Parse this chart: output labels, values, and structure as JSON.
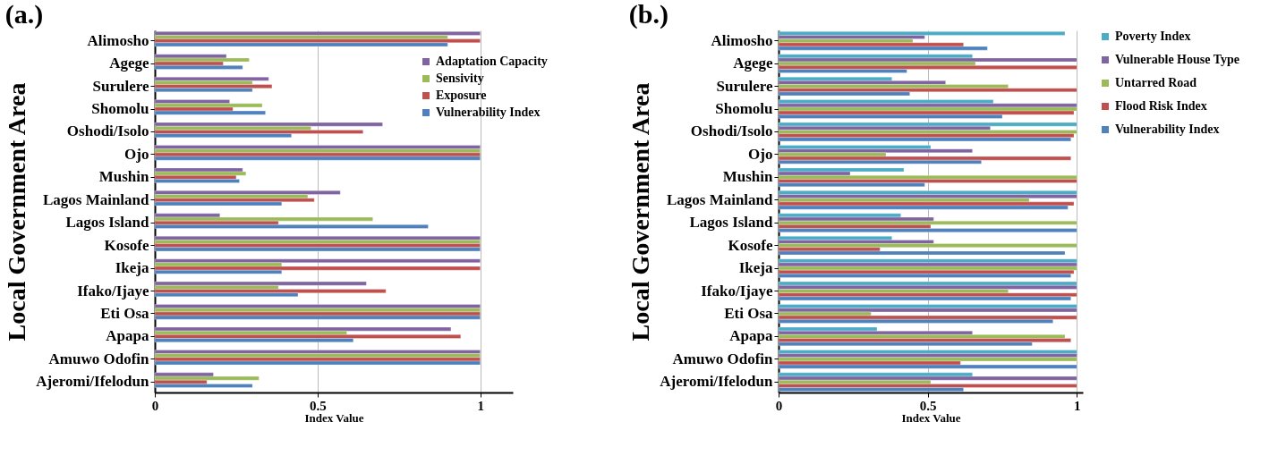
{
  "chart_data": [
    {
      "type": "bar",
      "orientation": "horizontal",
      "title": "(a.)",
      "xlabel": "Index Value",
      "ylabel": "Local Government Area",
      "categories": [
        "Alimosho",
        "Agege",
        "Surulere",
        "Shomolu",
        "Oshodi/Isolo",
        "Ojo",
        "Mushin",
        "Lagos Mainland",
        "Lagos Island",
        "Kosofe",
        "Ikeja",
        "Ifako/Ijaye",
        "Eti Osa",
        "Apapa",
        "Amuwo Odofin",
        "Ajeromi/Ifelodun"
      ],
      "series": [
        {
          "name": "Adaptation Capacity",
          "color": "#8064a2",
          "values": [
            1,
            0.22,
            0.35,
            0.23,
            0.7,
            1,
            0.27,
            0.57,
            0.2,
            1,
            1,
            0.65,
            1,
            0.91,
            1,
            0.18
          ]
        },
        {
          "name": "Sensivity",
          "color": "#9bbb59",
          "values": [
            0.9,
            0.29,
            0.3,
            0.33,
            0.48,
            1,
            0.28,
            0.47,
            0.67,
            1,
            0.39,
            0.38,
            1,
            0.59,
            1,
            0.32
          ]
        },
        {
          "name": "Exposure",
          "color": "#c0504d",
          "values": [
            1,
            0.21,
            0.36,
            0.24,
            0.64,
            1,
            0.25,
            0.49,
            0.38,
            1,
            1,
            0.71,
            1,
            0.94,
            1,
            0.16
          ]
        },
        {
          "name": "Vulnerability Index",
          "color": "#4f81bd",
          "values": [
            0.9,
            0.27,
            0.3,
            0.34,
            0.42,
            1,
            0.26,
            0.39,
            0.84,
            1,
            0.39,
            0.44,
            1,
            0.61,
            1,
            0.3
          ]
        }
      ],
      "xlim": [
        0,
        1.1
      ],
      "xticks": [
        0,
        0.5,
        1
      ],
      "grid": "x",
      "legend": "top right"
    },
    {
      "type": "bar",
      "orientation": "horizontal",
      "title": "(b.)",
      "xlabel": "Index Value",
      "ylabel": "Local Government Area",
      "categories": [
        "Alimosho",
        "Agege",
        "Surulere",
        "Shomolu",
        "Oshodi/Isolo",
        "Ojo",
        "Mushin",
        "Lagos Mainland",
        "Lagos Island",
        "Kosofe",
        "Ikeja",
        "Ifako/Ijaye",
        "Eti Osa",
        "Apapa",
        "Amuwo Odofin",
        "Ajeromi/Ifelodun"
      ],
      "series": [
        {
          "name": "Poverty Index",
          "color": "#4bacc6",
          "values": [
            0.96,
            0.65,
            0.38,
            0.72,
            1,
            0.51,
            0.42,
            1,
            0.41,
            0.38,
            1,
            1,
            1,
            0.33,
            1,
            0.65
          ]
        },
        {
          "name": "Vulnerable House Type",
          "color": "#8064a2",
          "values": [
            0.49,
            1,
            0.56,
            1,
            0.71,
            0.65,
            0.24,
            1,
            0.52,
            0.52,
            1,
            1,
            1,
            0.65,
            1,
            1
          ]
        },
        {
          "name": "Untarred Road",
          "color": "#9bbb59",
          "values": [
            0.45,
            0.66,
            0.77,
            1,
            1,
            0.36,
            1,
            0.84,
            1,
            1,
            1,
            0.77,
            0.31,
            0.96,
            1,
            0.51
          ]
        },
        {
          "name": "Flood Risk Index",
          "color": "#c0504d",
          "values": [
            0.62,
            1,
            1,
            0.99,
            0.99,
            0.98,
            1,
            0.99,
            0.51,
            0.34,
            0.99,
            1,
            1,
            0.98,
            0.61,
            1
          ]
        },
        {
          "name": "Vulnerability Index",
          "color": "#4f81bd",
          "values": [
            0.7,
            0.43,
            0.44,
            0.75,
            0.98,
            0.68,
            0.49,
            0.97,
            1,
            0.96,
            0.98,
            0.98,
            0.92,
            0.85,
            1,
            0.62
          ]
        }
      ],
      "xlim": [
        0,
        1.02
      ],
      "xticks": [
        0,
        0.5,
        1
      ],
      "grid": "x",
      "legend": "right"
    }
  ]
}
